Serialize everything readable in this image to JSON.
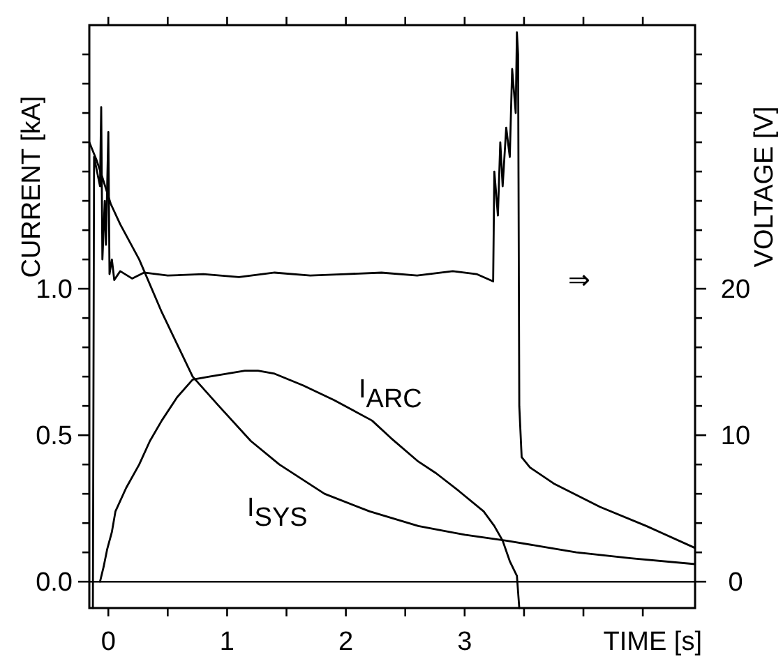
{
  "chart_data": {
    "type": "line",
    "xlabel": "TIME [s]",
    "ylabel": "CURRENT [kA]",
    "y2label": "VOLTAGE [V]",
    "xlim": [
      -0.16,
      4.94
    ],
    "ylim": [
      -0.09,
      1.9
    ],
    "y2lim": [
      -1.8,
      38
    ],
    "xticks": [
      {
        "value": 0,
        "label": "0"
      },
      {
        "value": 0.5,
        "label": null
      },
      {
        "value": 1,
        "label": "1"
      },
      {
        "value": 1.5,
        "label": null
      },
      {
        "value": 2,
        "label": "2"
      },
      {
        "value": 2.5,
        "label": null
      },
      {
        "value": 3,
        "label": "3"
      },
      {
        "value": 3.5,
        "label": null
      },
      {
        "value": 4,
        "label": null
      },
      {
        "value": 4.5,
        "label": null
      }
    ],
    "yticks": [
      {
        "value": 0,
        "label": "0.0"
      },
      {
        "value": 0.1,
        "label": null
      },
      {
        "value": 0.2,
        "label": null
      },
      {
        "value": 0.3,
        "label": null
      },
      {
        "value": 0.4,
        "label": null
      },
      {
        "value": 0.5,
        "label": "0.5"
      },
      {
        "value": 0.6,
        "label": null
      },
      {
        "value": 0.7,
        "label": null
      },
      {
        "value": 0.8,
        "label": null
      },
      {
        "value": 0.9,
        "label": null
      },
      {
        "value": 1,
        "label": "1.0"
      },
      {
        "value": 1.1,
        "label": null
      },
      {
        "value": 1.2,
        "label": null
      },
      {
        "value": 1.3,
        "label": null
      },
      {
        "value": 1.4,
        "label": null
      },
      {
        "value": 1.5,
        "label": null
      },
      {
        "value": 1.6,
        "label": null
      },
      {
        "value": 1.7,
        "label": null
      },
      {
        "value": 1.8,
        "label": null
      }
    ],
    "y2ticks": [
      0,
      {
        "value": 2,
        "label": null
      },
      {
        "value": 4,
        "label": null
      },
      {
        "value": 6,
        "label": null
      },
      {
        "value": 8,
        "label": null
      },
      10,
      {
        "value": 12,
        "label": null
      },
      {
        "value": 14,
        "label": null
      },
      {
        "value": 16,
        "label": null
      },
      {
        "value": 18,
        "label": null
      },
      20,
      {
        "value": 22,
        "label": null
      },
      {
        "value": 24,
        "label": null
      },
      {
        "value": 26,
        "label": null
      },
      {
        "value": 28,
        "label": null
      },
      {
        "value": 30,
        "label": null
      },
      {
        "value": 32,
        "label": null
      },
      {
        "value": 34,
        "label": null
      },
      {
        "value": 36,
        "label": null
      }
    ],
    "grid": false,
    "marker": "none",
    "line_style": "solid",
    "ref_lines": [
      {
        "axis": "y",
        "value": 0,
        "color": "#000000"
      }
    ],
    "annotations": [
      "I$_{ARC}$",
      "I$_{SYS}$",
      "⇒"
    ],
    "series": [
      {
        "color": "#000000",
        "x": [
          -0.07,
          -0.04,
          -0.01,
          0.03,
          0.06,
          0.15,
          0.26,
          0.35,
          0.45,
          0.58,
          0.71,
          0.85,
          1.0,
          1.15,
          1.26,
          1.4,
          1.64,
          1.9,
          2.22,
          2.38,
          2.61,
          2.76,
          2.95,
          3.16,
          3.25,
          3.32,
          3.38,
          3.44,
          3.46
        ],
        "values": [
          0,
          0.05,
          0.11,
          0.17,
          0.24,
          0.32,
          0.4,
          0.48,
          0.55,
          0.63,
          0.69,
          0.7,
          0.71,
          0.72,
          0.72,
          0.71,
          0.67,
          0.62,
          0.55,
          0.49,
          0.41,
          0.37,
          0.31,
          0.24,
          0.19,
          0.14,
          0.07,
          0.02,
          -0.09
        ]
      },
      {
        "color": "#000000",
        "x": [
          -0.16,
          -0.1,
          -0.05,
          0.02,
          0.1,
          0.26,
          0.45,
          0.71,
          0.93,
          1.2,
          1.44,
          1.82,
          2.2,
          2.61,
          3.0,
          3.35,
          3.65,
          3.94,
          4.4,
          4.94
        ],
        "values": [
          1.5,
          1.44,
          1.38,
          1.29,
          1.22,
          1.1,
          0.92,
          0.7,
          0.6,
          0.48,
          0.4,
          0.3,
          0.24,
          0.19,
          0.16,
          0.14,
          0.12,
          0.1,
          0.08,
          0.06
        ]
      },
      {
        "color": "#000000",
        "axis": "y2",
        "x": [
          -0.13,
          -0.12,
          -0.07,
          -0.06,
          -0.05,
          -0.03,
          -0.02,
          0.0,
          0.01,
          0.03,
          0.05,
          0.1,
          0.2,
          0.3,
          0.5,
          0.8,
          1.1,
          1.4,
          1.7,
          2.0,
          2.3,
          2.6,
          2.9,
          3.1,
          3.24,
          3.25,
          3.28,
          3.3,
          3.32,
          3.35,
          3.38,
          3.4,
          3.43,
          3.44,
          3.45,
          3.46,
          3.48,
          3.55,
          3.75,
          4.14,
          4.53,
          4.94
        ],
        "values": [
          -1.8,
          29,
          27,
          32.4,
          22,
          26,
          23,
          30.7,
          21,
          22,
          20.6,
          21.2,
          20.7,
          21.1,
          20.9,
          21.0,
          20.8,
          21.1,
          20.9,
          21.0,
          21.1,
          20.9,
          21.2,
          21.0,
          20.5,
          28,
          25,
          30,
          27,
          31,
          29,
          35,
          32,
          37.5,
          36,
          12,
          8.5,
          7.8,
          6.7,
          5.1,
          3.8,
          2.3
        ]
      }
    ]
  }
}
